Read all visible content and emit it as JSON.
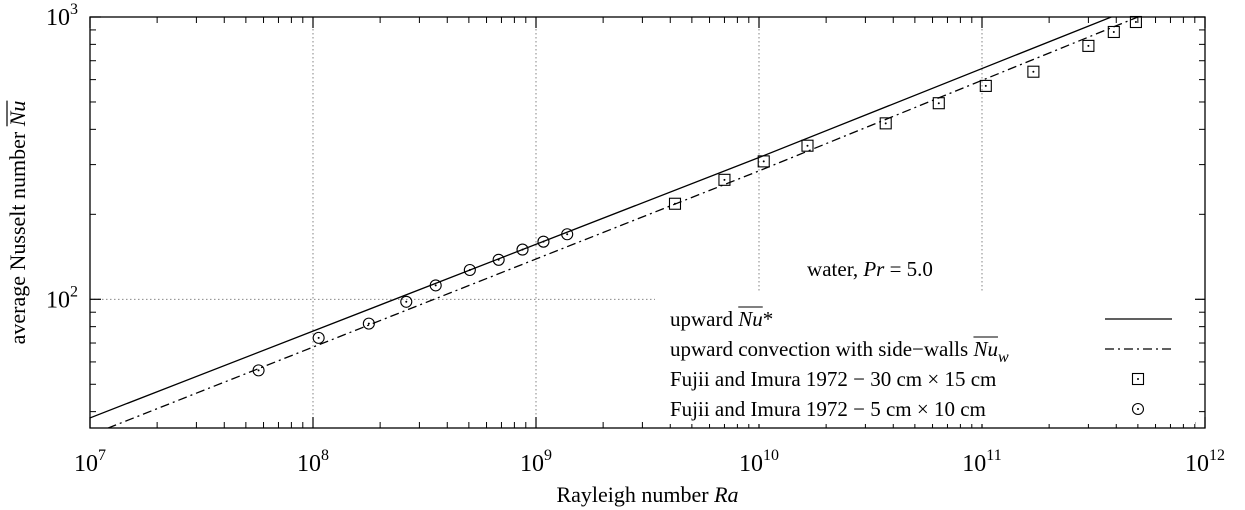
{
  "chart_data": {
    "type": "scatter",
    "x_scale": "log",
    "y_scale": "log",
    "xlim": [
      10000000,
      1000000000000
    ],
    "ylim": [
      35,
      1000
    ],
    "grid": true,
    "legend_position": "bottom-right",
    "xlabel": "Rayleigh number Ra",
    "ylabel": "average Nusselt number Nu",
    "x_ticks": [
      {
        "base": "10",
        "exp": "7"
      },
      {
        "base": "10",
        "exp": "8"
      },
      {
        "base": "10",
        "exp": "9"
      },
      {
        "base": "10",
        "exp": "10"
      },
      {
        "base": "10",
        "exp": "11"
      },
      {
        "base": "10",
        "exp": "12"
      }
    ],
    "y_ticks": [
      {
        "base": "10",
        "exp": "2"
      },
      {
        "base": "10",
        "exp": "3"
      }
    ],
    "annotation": "water, Pr = 5.0",
    "series": [
      {
        "name": "upward Nu*",
        "kind": "line",
        "style": "solid",
        "x": [
          10000000,
          10000000000,
          380000000000
        ],
        "y": [
          38,
          318,
          1000
        ]
      },
      {
        "name": "upward convection with side-walls Nu_w",
        "kind": "line",
        "style": "dashdot",
        "x": [
          10000000,
          10000000000,
          500000000000
        ],
        "y": [
          33,
          285,
          1000
        ]
      },
      {
        "name": "Fujii and Imura 1972 − 30 cm × 15 cm",
        "kind": "marker",
        "marker": "square",
        "x": [
          4200000000,
          7000000000,
          10500000000,
          16500000000,
          37000000000,
          64000000000,
          104000000000,
          170000000000,
          300000000000,
          390000000000,
          490000000000
        ],
        "y": [
          218,
          265,
          308,
          350,
          420,
          495,
          570,
          640,
          790,
          885,
          960
        ]
      },
      {
        "name": "Fujii and Imura 1972 − 5 cm × 10 cm",
        "kind": "marker",
        "marker": "circle",
        "x": [
          57000000,
          106000000,
          178000000,
          262000000,
          355000000,
          505000000,
          680000000,
          870000000,
          1080000000,
          1380000000
        ],
        "y": [
          56,
          73,
          82,
          98,
          112,
          127,
          138,
          150,
          160,
          170
        ]
      }
    ],
    "legend": [
      {
        "pre": "upward ",
        "base": "Nu",
        "post": "*",
        "sub": ""
      },
      {
        "pre": "upward convection with side−walls ",
        "base": "Nu",
        "post": "",
        "sub": "w"
      },
      {
        "pre": "Fujii and Imura 1972 − 30 cm × 15 cm",
        "base": "",
        "post": "",
        "sub": ""
      },
      {
        "pre": "Fujii and Imura 1972 − 5 cm × 10 cm",
        "base": "",
        "post": "",
        "sub": ""
      }
    ],
    "colors": {
      "line": "#000000",
      "grid": "#777777",
      "background": "#ffffff"
    }
  }
}
